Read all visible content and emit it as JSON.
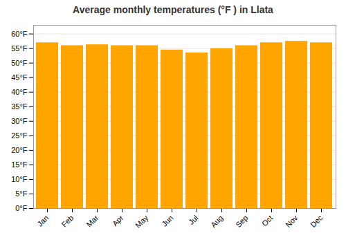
{
  "chart_data": {
    "type": "bar",
    "title": "Average monthly temperatures (°F ) in Llata",
    "categories": [
      "Jan",
      "Feb",
      "Mar",
      "Apr",
      "May",
      "Jun",
      "Jul",
      "Aug",
      "Sep",
      "Oct",
      "Nov",
      "Dec"
    ],
    "values": [
      57.0,
      56.0,
      56.3,
      56.0,
      56.0,
      54.5,
      53.5,
      55.0,
      56.0,
      57.0,
      57.5,
      57.0
    ],
    "color": "#FFA500",
    "ylim": [
      0,
      63
    ],
    "yticks": [
      {
        "value": 0,
        "label": "0°F"
      },
      {
        "value": 5,
        "label": "5°F"
      },
      {
        "value": 10,
        "label": "10°F"
      },
      {
        "value": 15,
        "label": "15°F"
      },
      {
        "value": 20,
        "label": "20°F"
      },
      {
        "value": 25,
        "label": "25°F"
      },
      {
        "value": 30,
        "label": "30°F"
      },
      {
        "value": 35,
        "label": "35°F"
      },
      {
        "value": 40,
        "label": "40°F"
      },
      {
        "value": 45,
        "label": "45°F"
      },
      {
        "value": 50,
        "label": "50°F"
      },
      {
        "value": 55,
        "label": "55°F"
      },
      {
        "value": 60,
        "label": "60°F"
      }
    ],
    "grid": true
  }
}
